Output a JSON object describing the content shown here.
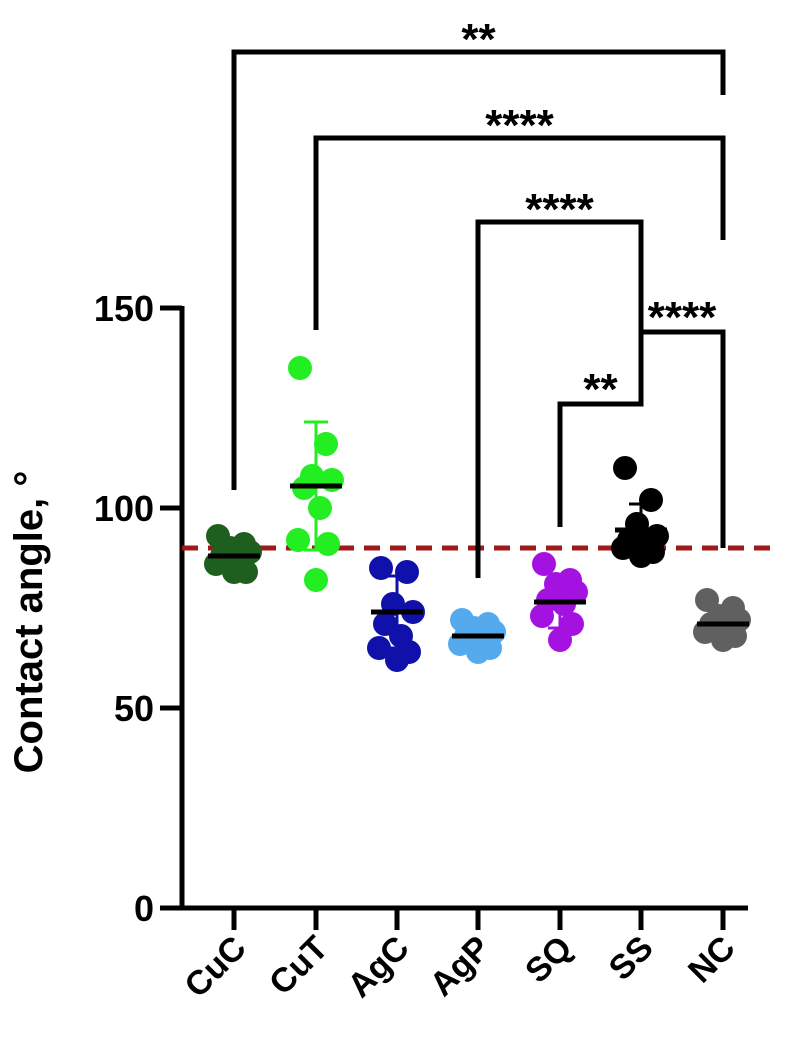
{
  "chart_data": {
    "type": "scatter",
    "ylabel": "Contact angle, °",
    "ylim": [
      0,
      150
    ],
    "yticks": [
      "0",
      "50",
      "100",
      "150"
    ],
    "categories": [
      "CuC",
      "CuT",
      "AgC",
      "AgP",
      "SQ",
      "SS",
      "NC"
    ],
    "colors": [
      "#1e5e1e",
      "#22ee22",
      "#1010aa",
      "#55aaee",
      "#a312e0",
      "#000000",
      "#606060"
    ],
    "reference_line": {
      "value": 90,
      "color": "#a01818",
      "style": "dashed"
    },
    "groups": [
      {
        "category": "CuC",
        "mean": 88,
        "sd": 4,
        "points": [
          93,
          91,
          90,
          89,
          88,
          87,
          86,
          84,
          84
        ]
      },
      {
        "category": "CuT",
        "mean": 105.5,
        "sd": 16,
        "points": [
          135,
          116,
          108,
          107,
          105,
          100,
          92,
          91,
          82
        ]
      },
      {
        "category": "AgC",
        "mean": 74,
        "sd": 9,
        "points": [
          85,
          84,
          76,
          74,
          71,
          68,
          65,
          64,
          62
        ]
      },
      {
        "category": "AgP",
        "mean": 68,
        "sd": 3.5,
        "points": [
          72,
          71,
          70,
          69,
          68,
          67,
          66,
          65,
          64
        ]
      },
      {
        "category": "SQ",
        "mean": 76.5,
        "sd": 6.5,
        "points": [
          86,
          82,
          81,
          79,
          77,
          76,
          73,
          71,
          67
        ]
      },
      {
        "category": "SS",
        "mean": 94.5,
        "sd": 6.5,
        "points": [
          110,
          102,
          96,
          93,
          92,
          91,
          90,
          89,
          88
        ]
      },
      {
        "category": "NC",
        "mean": 71,
        "sd": 3.5,
        "points": [
          77,
          75,
          73,
          72,
          71,
          70,
          69,
          68,
          67
        ]
      }
    ],
    "significance": [
      {
        "from": "CuC",
        "to": "NC",
        "label": "**"
      },
      {
        "from": "CuT",
        "to": "NC",
        "label": "****"
      },
      {
        "from": "AgP",
        "to": "SS",
        "label": "****"
      },
      {
        "from": "SS",
        "to": "NC",
        "label": "****"
      },
      {
        "from": "SQ",
        "to": "SS",
        "label": "**"
      }
    ]
  }
}
